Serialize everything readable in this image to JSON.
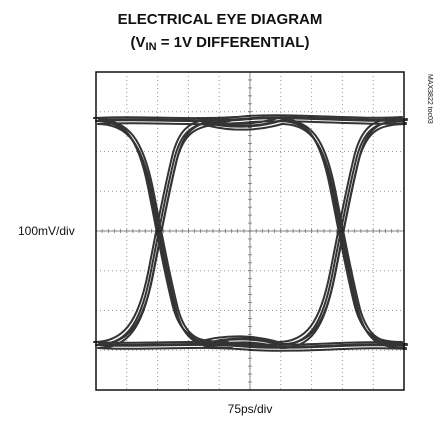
{
  "chart_data": {
    "type": "eye",
    "title": "ELECTRICAL EYE DIAGRAM",
    "subtitle": {
      "prefix": "(V",
      "subscript": "IN",
      "suffix": " = 1V DIFFERENTIAL)"
    },
    "y_label": "100mV/div",
    "x_label": "75ps/div",
    "side_note": "MAX3822 toc03",
    "grid": {
      "x_divisions": 10,
      "y_divisions": 8
    },
    "trace_color": "#111111"
  }
}
